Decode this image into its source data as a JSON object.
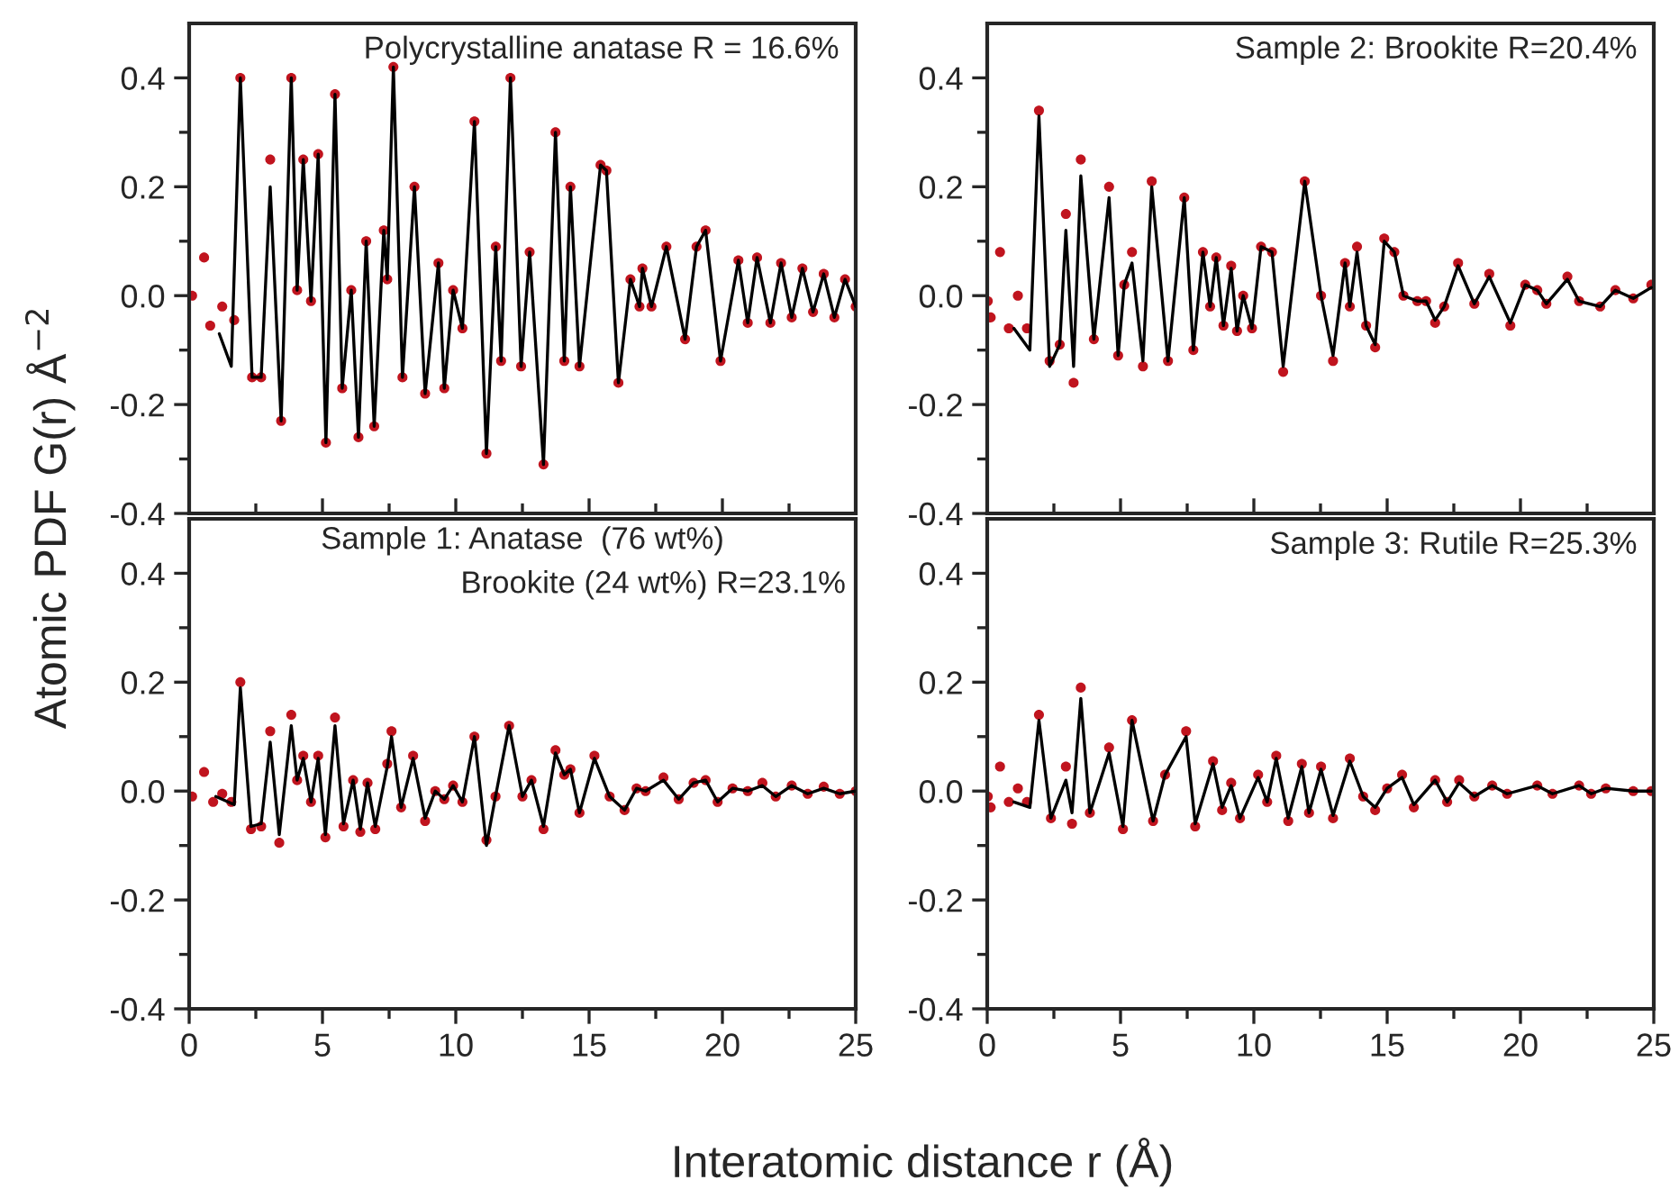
{
  "chart_data": [
    {
      "type": "scatter",
      "title": "Polycrystalline anatase R = 16.6%",
      "ylabel": "Atomic PDF G(r) Å$^{−2}$",
      "xlim": [
        0,
        25
      ],
      "ylim": [
        -0.4,
        0.5
      ],
      "tick_labels": "y",
      "xticks": [
        0,
        {
          "value": 2.5,
          "label": null
        },
        5,
        {
          "value": 7.5,
          "label": null
        },
        10,
        {
          "value": 12.5,
          "label": null
        },
        15,
        {
          "value": 17.5,
          "label": null
        },
        20,
        {
          "value": 22.5,
          "label": null
        },
        25
      ],
      "yticks": [
        -0.4,
        {
          "value": -0.3,
          "label": null
        },
        -0.2,
        {
          "value": -0.1,
          "label": null
        },
        {
          "value": 0,
          "label": "0.0"
        },
        {
          "value": 0.1,
          "label": null
        },
        0.2,
        {
          "value": 0.3,
          "label": null
        },
        0.4
      ],
      "series": [
        {
          "marker": "circle",
          "color": "#c0141e",
          "x": [
            0.11,
            0.56,
            0.79,
            1.24,
            1.69,
            1.92,
            2.36,
            2.7,
            3.04,
            3.45,
            3.83,
            4.05,
            4.28,
            4.57,
            4.84,
            5.13,
            5.47,
            5.74,
            6.08,
            6.35,
            6.64,
            6.94,
            7.3,
            7.43,
            7.66,
            8.0,
            8.45,
            8.85,
            9.35,
            9.57,
            9.9,
            10.25,
            10.7,
            11.15,
            11.5,
            11.7,
            12.05,
            12.45,
            12.77,
            13.29,
            13.74,
            14.07,
            14.3,
            14.64,
            15.43,
            15.65,
            16.1,
            16.55,
            16.89,
            17.0,
            17.34,
            17.9,
            18.6,
            19.03,
            19.37,
            19.93,
            20.6,
            20.95,
            21.3,
            21.8,
            22.2,
            22.6,
            23.0,
            23.4,
            23.8,
            24.2,
            24.6,
            25.0
          ],
          "values": [
            0.0,
            0.07,
            -0.055,
            -0.02,
            -0.045,
            0.4,
            -0.15,
            -0.15,
            0.25,
            -0.23,
            0.4,
            0.01,
            0.25,
            -0.01,
            0.26,
            -0.27,
            0.37,
            -0.17,
            0.01,
            -0.26,
            0.1,
            -0.24,
            0.12,
            0.03,
            0.42,
            -0.15,
            0.2,
            -0.18,
            0.06,
            -0.17,
            0.01,
            -0.06,
            0.32,
            -0.29,
            0.09,
            -0.12,
            0.4,
            -0.13,
            0.08,
            -0.31,
            0.3,
            -0.12,
            0.2,
            -0.13,
            0.24,
            0.23,
            -0.16,
            0.03,
            -0.02,
            0.05,
            -0.02,
            0.09,
            -0.08,
            0.09,
            0.12,
            -0.12,
            0.065,
            -0.05,
            0.07,
            -0.05,
            0.06,
            -0.04,
            0.05,
            -0.03,
            0.04,
            -0.04,
            0.03,
            -0.02
          ]
        },
        {
          "type": "line",
          "color": "#000000",
          "x": [
            1.13,
            1.58,
            1.92,
            2.36,
            2.7,
            3.04,
            3.45,
            3.83,
            4.05,
            4.28,
            4.57,
            4.84,
            5.13,
            5.47,
            5.74,
            6.08,
            6.35,
            6.64,
            6.94,
            7.3,
            7.43,
            7.66,
            8.0,
            8.45,
            8.85,
            9.35,
            9.57,
            9.9,
            10.25,
            10.7,
            11.15,
            11.5,
            11.7,
            12.05,
            12.45,
            12.77,
            13.29,
            13.74,
            14.07,
            14.3,
            14.64,
            15.43,
            15.65,
            16.1,
            16.55,
            16.89,
            17.0,
            17.34,
            17.9,
            18.6,
            19.03,
            19.37,
            19.93,
            20.6,
            20.95,
            21.3,
            21.8,
            22.2,
            22.6,
            23.0,
            23.4,
            23.8,
            24.2,
            24.6,
            25.0
          ],
          "values": [
            -0.07,
            -0.13,
            0.4,
            -0.15,
            -0.15,
            0.2,
            -0.23,
            0.4,
            0.01,
            0.25,
            -0.01,
            0.26,
            -0.27,
            0.37,
            -0.17,
            0.01,
            -0.26,
            0.1,
            -0.24,
            0.12,
            0.03,
            0.42,
            -0.15,
            0.2,
            -0.18,
            0.06,
            -0.17,
            0.01,
            -0.06,
            0.32,
            -0.29,
            0.09,
            -0.12,
            0.4,
            -0.13,
            0.08,
            -0.31,
            0.3,
            -0.12,
            0.2,
            -0.13,
            0.24,
            0.23,
            -0.16,
            0.03,
            -0.02,
            0.05,
            -0.02,
            0.09,
            -0.08,
            0.09,
            0.12,
            -0.12,
            0.065,
            -0.05,
            0.07,
            -0.05,
            0.06,
            -0.04,
            0.05,
            -0.03,
            0.04,
            -0.04,
            0.03,
            -0.02
          ]
        }
      ]
    },
    {
      "type": "scatter",
      "title": "Sample 2: Brookite R=20.4%",
      "xlim": [
        0,
        25
      ],
      "ylim": [
        -0.4,
        0.5
      ],
      "tick_labels": "y",
      "xticks": [
        0,
        {
          "value": 2.5,
          "label": null
        },
        5,
        {
          "value": 7.5,
          "label": null
        },
        10,
        {
          "value": 12.5,
          "label": null
        },
        15,
        {
          "value": 17.5,
          "label": null
        },
        20,
        {
          "value": 22.5,
          "label": null
        },
        25
      ],
      "yticks": [
        -0.4,
        {
          "value": -0.3,
          "label": null
        },
        -0.2,
        {
          "value": -0.1,
          "label": null
        },
        {
          "value": 0,
          "label": "0.0"
        },
        {
          "value": 0.1,
          "label": null
        },
        0.2,
        {
          "value": 0.3,
          "label": null
        },
        0.4
      ],
      "series": [
        {
          "marker": "circle",
          "color": "#c0141e",
          "x": [
            0.02,
            0.13,
            0.48,
            0.81,
            1.15,
            1.49,
            1.94,
            2.34,
            2.72,
            2.95,
            3.24,
            3.51,
            4.0,
            4.57,
            4.91,
            5.14,
            5.43,
            5.84,
            6.17,
            6.78,
            7.39,
            7.73,
            8.09,
            8.36,
            8.59,
            8.86,
            9.15,
            9.37,
            9.6,
            9.93,
            10.27,
            10.68,
            11.1,
            11.91,
            12.52,
            12.97,
            13.42,
            13.6,
            13.87,
            14.21,
            14.55,
            14.89,
            15.27,
            15.61,
            16.13,
            16.46,
            16.8,
            17.14,
            17.66,
            18.27,
            18.83,
            19.62,
            20.18,
            20.63,
            20.97,
            21.76,
            22.2,
            22.99,
            23.56,
            24.23,
            24.91
          ],
          "values": [
            -0.01,
            -0.04,
            0.08,
            -0.06,
            0.0,
            -0.06,
            0.34,
            -0.12,
            -0.09,
            0.15,
            -0.16,
            0.25,
            -0.08,
            0.2,
            -0.11,
            0.02,
            0.08,
            -0.13,
            0.21,
            -0.12,
            0.18,
            -0.1,
            0.08,
            -0.02,
            0.07,
            -0.055,
            0.055,
            -0.065,
            0.0,
            -0.06,
            0.09,
            0.08,
            -0.14,
            0.21,
            0.0,
            -0.12,
            0.06,
            -0.02,
            0.09,
            -0.055,
            -0.095,
            0.105,
            0.08,
            0.0,
            -0.01,
            -0.01,
            -0.05,
            -0.02,
            0.06,
            -0.015,
            0.04,
            -0.055,
            0.02,
            0.01,
            -0.015,
            0.035,
            -0.01,
            -0.02,
            0.01,
            -0.005,
            0.02
          ]
        },
        {
          "type": "line",
          "color": "#000000",
          "x": [
            1.0,
            1.6,
            1.94,
            2.34,
            2.72,
            2.95,
            3.24,
            3.51,
            4.0,
            4.57,
            4.91,
            5.14,
            5.43,
            5.84,
            6.17,
            6.78,
            7.39,
            7.73,
            8.09,
            8.36,
            8.59,
            8.86,
            9.15,
            9.37,
            9.6,
            9.93,
            10.27,
            10.68,
            11.1,
            11.91,
            12.52,
            12.97,
            13.42,
            13.6,
            13.87,
            14.21,
            14.55,
            14.89,
            15.27,
            15.61,
            16.13,
            16.46,
            16.8,
            17.14,
            17.66,
            18.27,
            18.83,
            19.62,
            20.18,
            20.63,
            20.97,
            21.76,
            22.2,
            22.99,
            23.56,
            24.23,
            24.91
          ],
          "values": [
            -0.06,
            -0.1,
            0.33,
            -0.13,
            -0.09,
            0.12,
            -0.13,
            0.22,
            -0.08,
            0.18,
            -0.11,
            0.02,
            0.06,
            -0.12,
            0.2,
            -0.12,
            0.18,
            -0.1,
            0.08,
            -0.02,
            0.07,
            -0.055,
            0.05,
            -0.065,
            0.0,
            -0.06,
            0.09,
            0.08,
            -0.13,
            0.21,
            0.0,
            -0.11,
            0.06,
            -0.02,
            0.08,
            -0.055,
            -0.09,
            0.1,
            0.08,
            0.0,
            -0.01,
            -0.01,
            -0.045,
            -0.02,
            0.055,
            -0.015,
            0.035,
            -0.05,
            0.02,
            0.01,
            -0.015,
            0.03,
            -0.01,
            -0.02,
            0.01,
            -0.005,
            0.015
          ]
        }
      ]
    },
    {
      "type": "scatter",
      "title": "Sample 1: Anatase  (76 wt%)",
      "subtitle": "Brookite (24 wt%) R=23.1%",
      "xlabel": "Interatomic distance r (Å)",
      "xlim": [
        0,
        25
      ],
      "ylim": [
        -0.4,
        0.5
      ],
      "xticks": [
        0,
        {
          "value": 2.5,
          "label": null
        },
        5,
        {
          "value": 7.5,
          "label": null
        },
        10,
        {
          "value": 12.5,
          "label": null
        },
        15,
        {
          "value": 17.5,
          "label": null
        },
        20,
        {
          "value": 22.5,
          "label": null
        },
        25
      ],
      "yticks": [
        -0.4,
        {
          "value": -0.3,
          "label": null
        },
        -0.2,
        {
          "value": -0.1,
          "label": null
        },
        {
          "value": 0,
          "label": "0.0"
        },
        {
          "value": 0.1,
          "label": null
        },
        0.2,
        {
          "value": 0.3,
          "label": null
        },
        0.4
      ],
      "series": [
        {
          "marker": "circle",
          "color": "#c0141e",
          "x": [
            0.11,
            0.56,
            0.9,
            1.24,
            1.58,
            1.92,
            2.32,
            2.7,
            3.04,
            3.38,
            3.83,
            4.05,
            4.28,
            4.57,
            4.84,
            5.11,
            5.47,
            5.79,
            6.15,
            6.42,
            6.69,
            6.98,
            7.43,
            7.59,
            7.95,
            8.4,
            8.85,
            9.23,
            9.57,
            9.9,
            10.25,
            10.7,
            11.15,
            11.49,
            12.0,
            12.5,
            12.84,
            13.29,
            13.74,
            14.07,
            14.3,
            14.64,
            15.2,
            15.77,
            16.33,
            16.78,
            17.12,
            17.79,
            18.36,
            18.92,
            19.37,
            19.82,
            20.38,
            20.95,
            21.5,
            22.0,
            22.6,
            23.2,
            23.8,
            24.4,
            25.0
          ],
          "values": [
            -0.01,
            0.035,
            -0.02,
            -0.005,
            -0.02,
            0.2,
            -0.07,
            -0.065,
            0.11,
            -0.095,
            0.14,
            0.02,
            0.065,
            -0.02,
            0.065,
            -0.085,
            0.135,
            -0.065,
            0.02,
            -0.075,
            0.015,
            -0.07,
            0.05,
            0.11,
            -0.03,
            0.065,
            -0.055,
            0.0,
            -0.015,
            0.01,
            -0.02,
            0.1,
            -0.09,
            -0.01,
            0.12,
            -0.01,
            0.02,
            -0.07,
            0.075,
            0.03,
            0.04,
            -0.04,
            0.065,
            -0.01,
            -0.035,
            0.005,
            0.0,
            0.025,
            -0.015,
            0.015,
            0.02,
            -0.02,
            0.005,
            0.0,
            0.015,
            -0.01,
            0.01,
            -0.005,
            0.008,
            -0.005,
            0.0
          ]
        },
        {
          "type": "line",
          "color": "#000000",
          "x": [
            1.0,
            1.69,
            1.92,
            2.32,
            2.7,
            3.04,
            3.38,
            3.83,
            4.05,
            4.28,
            4.57,
            4.84,
            5.11,
            5.47,
            5.79,
            6.15,
            6.42,
            6.69,
            6.98,
            7.43,
            7.59,
            7.95,
            8.4,
            8.85,
            9.23,
            9.57,
            9.9,
            10.25,
            10.7,
            11.15,
            11.49,
            12.0,
            12.5,
            12.84,
            13.29,
            13.74,
            14.07,
            14.3,
            14.64,
            15.2,
            15.77,
            16.33,
            16.78,
            17.12,
            17.79,
            18.36,
            18.92,
            19.37,
            19.82,
            20.38,
            20.95,
            21.5,
            22.0,
            22.6,
            23.2,
            23.8,
            24.4,
            25.0
          ],
          "values": [
            -0.01,
            -0.025,
            0.19,
            -0.065,
            -0.06,
            0.09,
            -0.08,
            0.12,
            0.02,
            0.06,
            -0.02,
            0.06,
            -0.08,
            0.12,
            -0.06,
            0.02,
            -0.07,
            0.015,
            -0.065,
            0.045,
            0.1,
            -0.03,
            0.06,
            -0.05,
            0.0,
            -0.015,
            0.01,
            -0.02,
            0.1,
            -0.1,
            -0.01,
            0.12,
            -0.01,
            0.02,
            -0.065,
            0.07,
            0.03,
            0.04,
            -0.04,
            0.06,
            -0.01,
            -0.035,
            0.005,
            0.0,
            0.02,
            -0.015,
            0.015,
            0.02,
            -0.02,
            0.005,
            0.0,
            0.01,
            -0.01,
            0.01,
            -0.005,
            0.005,
            -0.005,
            0.0
          ]
        }
      ]
    },
    {
      "type": "scatter",
      "title": "Sample 3: Rutile R=25.3%",
      "xlim": [
        0,
        25
      ],
      "ylim": [
        -0.4,
        0.5
      ],
      "xticks": [
        0,
        {
          "value": 2.5,
          "label": null
        },
        5,
        {
          "value": 7.5,
          "label": null
        },
        10,
        {
          "value": 12.5,
          "label": null
        },
        15,
        {
          "value": 17.5,
          "label": null
        },
        20,
        {
          "value": 22.5,
          "label": null
        },
        25
      ],
      "yticks": [
        -0.4,
        {
          "value": -0.3,
          "label": null
        },
        -0.2,
        {
          "value": -0.1,
          "label": null
        },
        {
          "value": 0,
          "label": "0.0"
        },
        {
          "value": 0.1,
          "label": null
        },
        0.2,
        {
          "value": 0.3,
          "label": null
        },
        0.4
      ],
      "series": [
        {
          "marker": "circle",
          "color": "#c0141e",
          "x": [
            0.02,
            0.13,
            0.48,
            0.81,
            1.15,
            1.49,
            1.94,
            2.39,
            2.95,
            3.18,
            3.51,
            3.85,
            4.57,
            5.09,
            5.43,
            6.22,
            6.67,
            7.46,
            7.8,
            8.47,
            8.81,
            9.15,
            9.48,
            10.16,
            10.5,
            10.84,
            11.29,
            11.8,
            12.07,
            12.52,
            12.97,
            13.6,
            14.1,
            14.55,
            15.0,
            15.56,
            16.0,
            16.8,
            17.25,
            17.7,
            18.27,
            18.94,
            19.5,
            20.63,
            21.2,
            22.2,
            22.65,
            23.2,
            24.23,
            24.91
          ],
          "values": [
            -0.01,
            -0.03,
            0.045,
            -0.02,
            0.005,
            -0.02,
            0.14,
            -0.05,
            0.045,
            -0.06,
            0.19,
            -0.04,
            0.08,
            -0.07,
            0.13,
            -0.055,
            0.03,
            0.11,
            -0.065,
            0.055,
            -0.035,
            0.015,
            -0.05,
            0.03,
            -0.02,
            0.065,
            -0.055,
            0.05,
            -0.04,
            0.045,
            -0.05,
            0.06,
            -0.01,
            -0.035,
            0.005,
            0.03,
            -0.03,
            0.02,
            -0.02,
            0.02,
            -0.01,
            0.01,
            -0.005,
            0.01,
            -0.005,
            0.01,
            -0.005,
            0.005,
            0.0,
            0.0
          ]
        },
        {
          "type": "line",
          "color": "#000000",
          "x": [
            1.0,
            1.6,
            1.94,
            2.39,
            2.95,
            3.18,
            3.51,
            3.85,
            4.57,
            5.09,
            5.43,
            6.22,
            6.67,
            7.46,
            7.8,
            8.47,
            8.81,
            9.15,
            9.48,
            10.16,
            10.5,
            10.84,
            11.29,
            11.8,
            12.07,
            12.52,
            12.97,
            13.6,
            14.1,
            14.55,
            15.0,
            15.56,
            16.0,
            16.8,
            17.25,
            17.7,
            18.27,
            18.94,
            19.5,
            20.63,
            21.2,
            22.2,
            22.65,
            23.2,
            24.23,
            24.91
          ],
          "values": [
            -0.02,
            -0.03,
            0.13,
            -0.05,
            0.02,
            -0.04,
            0.17,
            -0.04,
            0.07,
            -0.065,
            0.13,
            -0.055,
            0.03,
            0.1,
            -0.06,
            0.05,
            -0.03,
            0.01,
            -0.05,
            0.025,
            -0.02,
            0.06,
            -0.05,
            0.045,
            -0.04,
            0.04,
            -0.045,
            0.055,
            -0.01,
            -0.03,
            0.005,
            0.025,
            -0.025,
            0.02,
            -0.02,
            0.015,
            -0.01,
            0.01,
            -0.005,
            0.01,
            -0.005,
            0.01,
            -0.005,
            0.005,
            0.0,
            0.0
          ]
        }
      ]
    }
  ]
}
